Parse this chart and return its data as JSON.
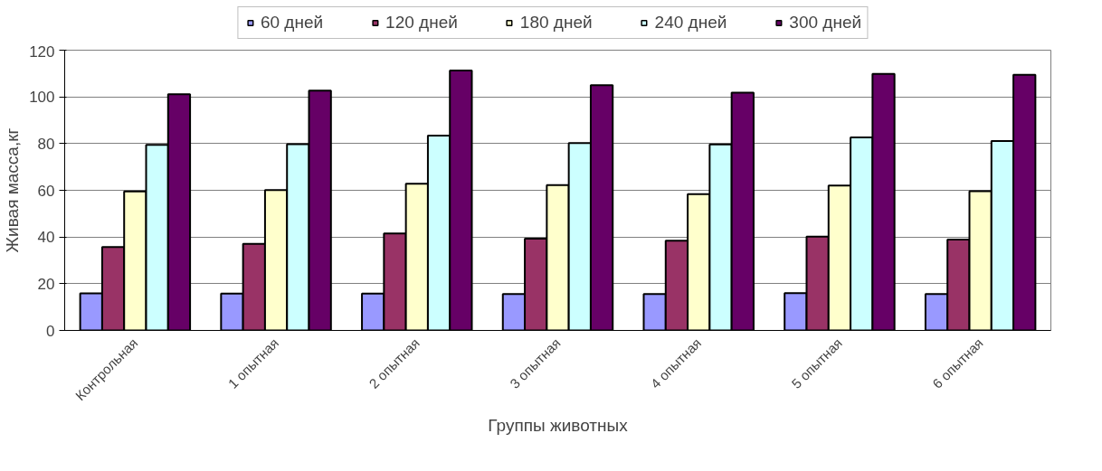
{
  "chart_data": {
    "type": "bar",
    "xlabel": "Группы животных",
    "ylabel": "Живая масса,кг",
    "categories": [
      "Контрольная",
      "1 опытная",
      "2 опытная",
      "3 опытная",
      "4 опытная",
      "5 опытная",
      "6 опытная"
    ],
    "series": [
      {
        "name": "60 дней",
        "color": "#9999ff",
        "values": [
          15.9,
          15.8,
          15.8,
          15.6,
          15.6,
          16,
          15.6
        ]
      },
      {
        "name": "120 дней",
        "color": "#993366",
        "values": [
          35.7,
          37.1,
          41.5,
          39.3,
          38.4,
          40.2,
          38.9
        ]
      },
      {
        "name": "180 дней",
        "color": "#ffffcc",
        "values": [
          59.5,
          60.1,
          62.8,
          62.2,
          58.4,
          62,
          59.6
        ]
      },
      {
        "name": "240 дней",
        "color": "#ccffff",
        "values": [
          79.5,
          79.7,
          83.4,
          80.2,
          79.6,
          82.6,
          81.1
        ]
      },
      {
        "name": "300 дней",
        "color": "#660066",
        "values": [
          101.1,
          102.7,
          111.3,
          105,
          101.8,
          109.8,
          109.5
        ]
      }
    ],
    "ylim": [
      0,
      120
    ],
    "yticks": [
      0,
      20,
      40,
      60,
      80,
      100,
      120
    ],
    "grid": "y",
    "legend": "top"
  }
}
